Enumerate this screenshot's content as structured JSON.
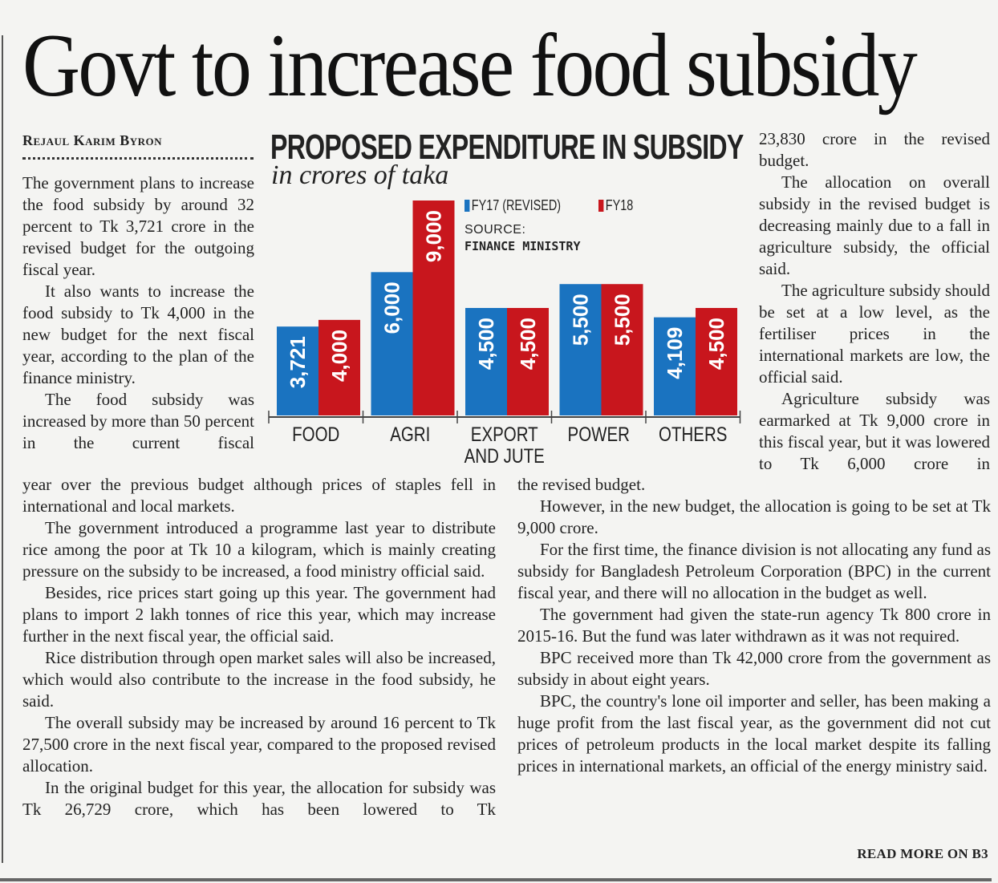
{
  "article": {
    "headline": "Govt to increase food subsidy",
    "byline": "Rejaul Karim Byron",
    "column1": [
      {
        "text": "The government plans to increase the food subsidy by around 32 percent to Tk 3,721 crore in the revised budget for the outgoing fiscal year.",
        "indent": false
      },
      {
        "text": "It also wants to increase the food subsidy to Tk 4,000 in the new budget for the next fiscal year, according to the plan of the finance ministry.",
        "indent": true
      },
      {
        "text": "The food subsidy was increased by more than 50 percent in the current fiscal",
        "indent": true
      }
    ],
    "column3": [
      {
        "text": "23,830 crore in the revised budget.",
        "indent": false
      },
      {
        "text": "The allocation on overall subsidy in the revised budget is decreasing mainly due to a fall in agriculture subsidy, the official said.",
        "indent": true
      },
      {
        "text": "The agriculture subsidy should be set at a low level, as the fertiliser prices in the international markets are low, the official said.",
        "indent": true
      },
      {
        "text": "Agriculture subsidy was earmarked at Tk 9,000 crore in this fiscal year, but it was lowered to Tk 6,000 crore in",
        "indent": true
      }
    ],
    "bottom_left": [
      {
        "text": "year over the previous budget although prices of staples fell in international and local markets.",
        "indent": false
      },
      {
        "text": "The government introduced a programme last year to distribute rice among the poor at Tk 10 a kilogram, which is mainly creating pressure on the subsidy to be increased, a food ministry official said.",
        "indent": true
      },
      {
        "text": "Besides, rice prices start going up this year. The government had plans to import 2 lakh tonnes of rice this year, which may increase further in the next fiscal year, the official said.",
        "indent": true
      },
      {
        "text": "Rice distribution through open market sales will also be increased, which would also contribute to the increase in the food subsidy, he said.",
        "indent": true
      },
      {
        "text": "The overall subsidy may be increased by around 16 percent to Tk 27,500 crore in the next fiscal year, compared to the proposed revised allocation.",
        "indent": true
      },
      {
        "text": "In the original budget for this year, the allocation for subsidy was Tk 26,729 crore, which has been lowered to Tk",
        "indent": true
      }
    ],
    "bottom_right": [
      {
        "text": "the revised budget.",
        "indent": false
      },
      {
        "text": "However, in the new budget, the allocation is going to be set at Tk 9,000 crore.",
        "indent": true
      },
      {
        "text": "For the first time, the finance division is not allocating any fund as subsidy for Bangladesh Petroleum Corporation (BPC) in the current fiscal year, and there will no allocation in the budget as well.",
        "indent": true
      },
      {
        "text": "The government had given the state-run agency Tk 800 crore in 2015-16. But the fund was later withdrawn as it was not required.",
        "indent": true
      },
      {
        "text": "BPC received more than Tk 42,000 crore from the government as subsidy in about eight years.",
        "indent": true
      },
      {
        "text": "BPC, the country's lone oil importer and seller, has been making a huge profit from the last fiscal year, as the government did not cut prices of petroleum products in the local market despite its falling prices in international markets, an official of the energy ministry said.",
        "indent": true
      }
    ],
    "read_more": "READ MORE ON B3"
  },
  "chart_data": {
    "type": "bar",
    "title": "PROPOSED EXPENDITURE IN SUBSIDY",
    "subtitle": "in crores of taka",
    "source_label": "SOURCE:",
    "source": "FINANCE MINISTRY",
    "categories": [
      [
        "FOOD"
      ],
      [
        "AGRI"
      ],
      [
        "EXPORT",
        "AND JUTE"
      ],
      [
        "POWER"
      ],
      [
        "OTHERS"
      ]
    ],
    "series": [
      {
        "name": "FY17 (REVISED)",
        "color": "#1a73c0",
        "values": [
          3721,
          6000,
          4500,
          5500,
          4109
        ],
        "labels": [
          "3,721",
          "6,000",
          "4,500",
          "5,500",
          "4,109"
        ]
      },
      {
        "name": "FY18",
        "color": "#c8161d",
        "values": [
          4000,
          9000,
          4500,
          5500,
          4500
        ],
        "labels": [
          "4,000",
          "9,000",
          "4,500",
          "5,500",
          "4,500"
        ]
      }
    ],
    "xlabel": "",
    "ylabel": "",
    "ylim": [
      0,
      9000
    ],
    "grid": false,
    "legend": "top-right"
  }
}
